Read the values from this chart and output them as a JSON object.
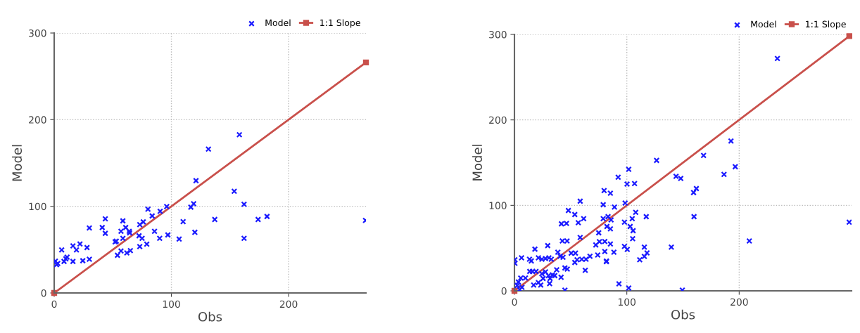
{
  "chart_data": [
    {
      "type": "scatter",
      "xlabel": "Obs",
      "ylabel": "Model",
      "xlim": [
        0,
        266
      ],
      "ylim": [
        0,
        300
      ],
      "xticks": [
        0,
        100,
        200
      ],
      "yticks": [
        0,
        100,
        200,
        300
      ],
      "grid": true,
      "legend": "top right",
      "series": [
        {
          "name": "Model",
          "color": "#1a1aff",
          "marker": "cross",
          "x": [
            158,
            131.6,
            121,
            153.6,
            162,
            119,
            116.6,
            96,
            90.4,
            80,
            83.6,
            137,
            174,
            181.6,
            265.6,
            110,
            76,
            73,
            43.6,
            58.6,
            30,
            41,
            43.6,
            57,
            61,
            64,
            64.4,
            85.6,
            120,
            162,
            106.6,
            97,
            90,
            72.4,
            75,
            58.6,
            52,
            53,
            79,
            73,
            65,
            62,
            57,
            54,
            22,
            16,
            28,
            19,
            6.4,
            11,
            10,
            8.4,
            16,
            24.4,
            30,
            1,
            2,
            3
          ],
          "values": [
            182.6,
            166,
            129.6,
            117.4,
            102.4,
            103,
            99,
            99.7,
            94.3,
            96.7,
            88.9,
            84.8,
            84.8,
            88.3,
            83.7,
            82.3,
            82,
            78.8,
            85.6,
            83.2,
            75,
            75.5,
            68.8,
            71.2,
            75.5,
            71.2,
            69.3,
            71.2,
            70,
            63,
            62.2,
            67,
            63,
            66,
            63,
            63,
            59,
            59.8,
            56.3,
            53.5,
            48.9,
            46.2,
            48.4,
            43.5,
            56.5,
            54.3,
            52.4,
            49.7,
            49.7,
            41.3,
            39.4,
            36.4,
            36.4,
            37.2,
            38.9,
            36.7,
            32.6,
            34
          ]
        },
        {
          "name": "1:1 Slope",
          "type": "line",
          "color": "#c9504b",
          "marker": "square",
          "x": [
            0,
            266
          ],
          "values": [
            0,
            266
          ]
        }
      ]
    },
    {
      "type": "scatter",
      "xlabel": "Obs",
      "ylabel": "Model",
      "xlim": [
        0,
        300
      ],
      "ylim": [
        0,
        300
      ],
      "xticks": [
        0,
        100,
        200
      ],
      "yticks": [
        0,
        100,
        200,
        300
      ],
      "grid": true,
      "legend": "top right",
      "series": [
        {
          "name": "Model",
          "color": "#1a1aff",
          "marker": "cross",
          "x": [
            234,
            192.7,
            168.3,
            196.5,
            186.5,
            126.5,
            101.7,
            106.9,
            100.2,
            143.8,
            148,
            161.9,
            159.4,
            98.5,
            107.9,
            117.3,
            159.8,
            104.8,
            97.9,
            103,
            105.6,
            105.2,
            297.9,
            209,
            139.6,
            115.6,
            118,
            115.6,
            111.5,
            97.9,
            100.4,
            93,
            101.7,
            149.4,
            92.3,
            85.4,
            89,
            83.3,
            86,
            82.3,
            85.4,
            85.4,
            88.5,
            81.9,
            79.8,
            79,
            58.5,
            48,
            53.7,
            61.6,
            41.8,
            46.3,
            56.8,
            79,
            75,
            58.5,
            42.6,
            46.8,
            72.4,
            75.6,
            80.4,
            29.6,
            18.2,
            38.6,
            40.7,
            50.5,
            54.3,
            80.4,
            74.1,
            43.2,
            6.3,
            0.4,
            0.4,
            13.4,
            15,
            21.3,
            24.4,
            27.6,
            30.7,
            32.8,
            55.7,
            59.9,
            63.7,
            67.2,
            53.7,
            44.9,
            47,
            63,
            81.8,
            37.6,
            41.5,
            31.7,
            13.6,
            16.1,
            19.2,
            24.4,
            27.6,
            30.3,
            33.8,
            35.9,
            25.5,
            21.3,
            23.4,
            17.1,
            31.3,
            5.6,
            3.5,
            2.5,
            6.7,
            4.6,
            9.8,
            44.9
          ],
          "values": [
            271.8,
            175.3,
            158.4,
            145.2,
            136.2,
            152.6,
            142.2,
            125.5,
            124.9,
            134,
            131.5,
            119.7,
            115,
            102.7,
            91.8,
            86.8,
            86.8,
            84.4,
            80.3,
            75.3,
            70.4,
            61,
            80.3,
            58.4,
            51.2,
            51.2,
            44.4,
            40.3,
            36.4,
            52,
            48.5,
            8.2,
            3.3,
            0.8,
            132.9,
            114.2,
            98,
            86.8,
            83,
            75.3,
            72.6,
            54.8,
            45.2,
            34.8,
            117.3,
            100.8,
            104.9,
            94,
            89.3,
            84.4,
            78.4,
            78.9,
            79.7,
            84.4,
            67.9,
            62.5,
            58.4,
            58.4,
            53.7,
            57.5,
            57.8,
            52.9,
            48.8,
            45.2,
            40.5,
            44.1,
            44.1,
            46,
            41.9,
            39.2,
            38.6,
            36.4,
            32.3,
            37,
            35,
            38.6,
            37,
            37.8,
            38.6,
            37,
            36.4,
            37,
            37,
            40.5,
            33.2,
            26.8,
            25.5,
            24.1,
            34.2,
            24.7,
            15.9,
            14.5,
            22.7,
            22.7,
            22.7,
            20,
            22.2,
            17.8,
            18.6,
            17.8,
            14.5,
            9.6,
            6.8,
            6.8,
            8.5,
            15,
            10.4,
            6.3,
            4.1,
            1.4,
            15,
            0.8
          ]
        },
        {
          "name": "1:1 Slope",
          "type": "line",
          "color": "#c9504b",
          "marker": "square",
          "x": [
            0,
            298
          ],
          "values": [
            0,
            298
          ]
        }
      ]
    }
  ]
}
